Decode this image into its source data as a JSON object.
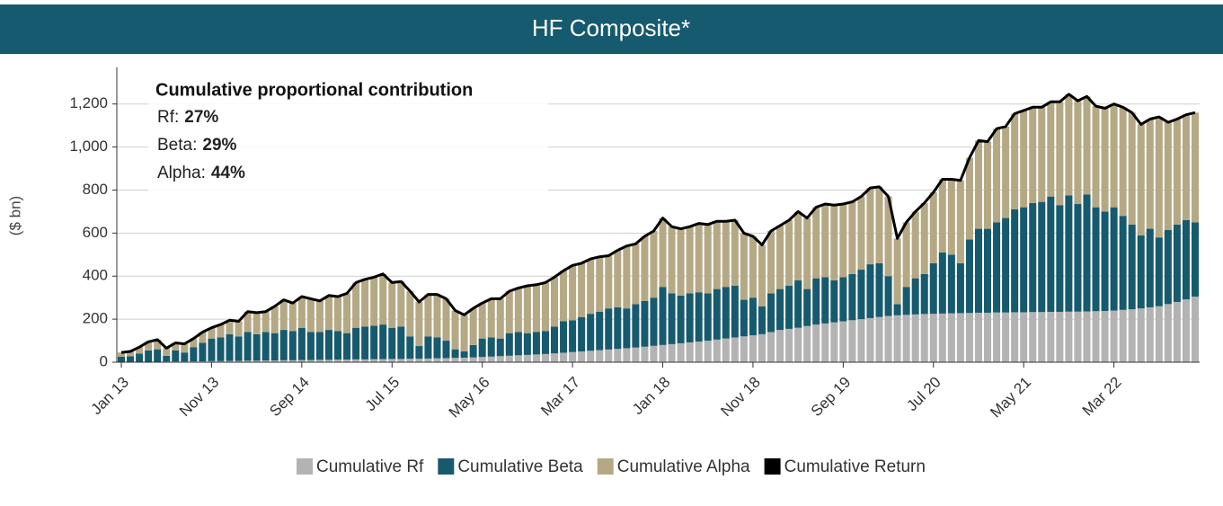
{
  "chart_data": {
    "type": "stacked-bar",
    "title": "HF Composite*",
    "y_label": "($ bn)",
    "annotation": {
      "title": "Cumulative proportional contribution",
      "items": [
        {
          "label": "Rf:",
          "value": "27%"
        },
        {
          "label": "Beta:",
          "value": "29%"
        },
        {
          "label": "Alpha:",
          "value": "44%"
        }
      ]
    },
    "categories": [
      "Jan 13",
      null,
      null,
      null,
      null,
      null,
      null,
      null,
      null,
      null,
      "Nov 13",
      null,
      null,
      null,
      null,
      null,
      null,
      null,
      null,
      null,
      "Sep 14",
      null,
      null,
      null,
      null,
      null,
      null,
      null,
      null,
      null,
      "Jul 15",
      null,
      null,
      null,
      null,
      null,
      null,
      null,
      null,
      null,
      "May 16",
      null,
      null,
      null,
      null,
      null,
      null,
      null,
      null,
      null,
      "Mar 17",
      null,
      null,
      null,
      null,
      null,
      null,
      null,
      null,
      null,
      "Jan 18",
      null,
      null,
      null,
      null,
      null,
      null,
      null,
      null,
      null,
      "Nov 18",
      null,
      null,
      null,
      null,
      null,
      null,
      null,
      null,
      null,
      "Sep 19",
      null,
      null,
      null,
      null,
      null,
      null,
      null,
      null,
      null,
      "Jul 20",
      null,
      null,
      null,
      null,
      null,
      null,
      null,
      null,
      null,
      "May 21",
      null,
      null,
      null,
      null,
      null,
      null,
      null,
      null,
      null,
      "Mar 22",
      null,
      null,
      null,
      null,
      null,
      null,
      null,
      null,
      null
    ],
    "ylim": [
      0,
      1370
    ],
    "yticks": [
      0,
      200,
      400,
      600,
      800,
      {
        "value": 1000,
        "label": "1,000"
      },
      {
        "value": 1200,
        "label": "1,200"
      }
    ],
    "grid": true,
    "series": [
      {
        "name": "Cumulative Rf",
        "color": "#b3b3b3",
        "values": [
          1,
          1,
          2,
          2,
          2,
          3,
          3,
          3,
          4,
          4,
          5,
          5,
          6,
          6,
          7,
          7,
          8,
          8,
          9,
          9,
          10,
          10,
          11,
          11,
          12,
          12,
          13,
          13,
          14,
          14,
          15,
          15,
          16,
          16,
          17,
          18,
          19,
          20,
          21,
          22,
          24,
          26,
          28,
          30,
          32,
          34,
          36,
          38,
          41,
          44,
          47,
          50,
          53,
          56,
          59,
          62,
          65,
          68,
          72,
          76,
          80,
          84,
          88,
          92,
          96,
          100,
          105,
          110,
          115,
          120,
          125,
          130,
          140,
          150,
          155,
          160,
          168,
          175,
          180,
          185,
          190,
          195,
          200,
          205,
          210,
          215,
          218,
          220,
          222,
          224,
          225,
          226,
          227,
          228,
          229,
          230,
          230,
          231,
          231,
          232,
          232,
          233,
          233,
          234,
          234,
          235,
          235,
          236,
          237,
          238,
          240,
          243,
          246,
          250,
          255,
          260,
          270,
          280,
          292,
          305
        ]
      },
      {
        "name": "Cumulative Beta",
        "color": "#175a6e",
        "values": [
          24,
          27,
          38,
          53,
          58,
          27,
          52,
          42,
          66,
          86,
          105,
          110,
          124,
          114,
          133,
          123,
          132,
          127,
          141,
          136,
          150,
          130,
          129,
          139,
          133,
          123,
          147,
          152,
          156,
          161,
          145,
          150,
          104,
          59,
          103,
          97,
          81,
          40,
          29,
          58,
          86,
          89,
          82,
          105,
          108,
          101,
          104,
          107,
          124,
          146,
          148,
          160,
          172,
          179,
          191,
          193,
          185,
          202,
          213,
          224,
          270,
          236,
          222,
          228,
          229,
          220,
          235,
          240,
          240,
          170,
          175,
          130,
          180,
          190,
          200,
          220,
          172,
          215,
          215,
          195,
          205,
          215,
          230,
          250,
          250,
          185,
          52,
          130,
          168,
          186,
          235,
          284,
          273,
          232,
          341,
          390,
          390,
          419,
          439,
          478,
          488,
          507,
          512,
          536,
          496,
          540,
          500,
          544,
          483,
          462,
          480,
          437,
          394,
          340,
          365,
          320,
          345,
          360,
          368,
          345
        ]
      },
      {
        "name": "Cumulative Alpha",
        "color": "#b5a985",
        "values": [
          20,
          22,
          30,
          40,
          45,
          35,
          35,
          40,
          40,
          50,
          50,
          60,
          65,
          70,
          95,
          100,
          95,
          125,
          140,
          130,
          145,
          155,
          145,
          160,
          160,
          185,
          210,
          220,
          225,
          235,
          210,
          210,
          210,
          205,
          195,
          200,
          195,
          180,
          170,
          170,
          165,
          180,
          185,
          195,
          205,
          220,
          220,
          225,
          230,
          235,
          255,
          250,
          255,
          255,
          245,
          265,
          290,
          280,
          300,
          310,
          320,
          310,
          310,
          310,
          320,
          320,
          315,
          305,
          305,
          310,
          285,
          285,
          290,
          295,
          305,
          320,
          330,
          330,
          340,
          350,
          340,
          335,
          340,
          355,
          355,
          370,
          305,
          300,
          310,
          330,
          330,
          340,
          350,
          385,
          380,
          410,
          405,
          435,
          425,
          445,
          450,
          445,
          440,
          440,
          480,
          470,
          480,
          455,
          470,
          480,
          480,
          505,
          520,
          515,
          510,
          560,
          500,
          490,
          490,
          510
        ]
      },
      {
        "name": "Cumulative Return",
        "color": "#000000",
        "type": "line",
        "values": [
          45,
          50,
          70,
          95,
          105,
          65,
          90,
          85,
          110,
          140,
          160,
          175,
          195,
          190,
          235,
          230,
          235,
          260,
          290,
          275,
          305,
          295,
          285,
          310,
          305,
          320,
          370,
          385,
          395,
          410,
          370,
          375,
          330,
          280,
          315,
          315,
          295,
          240,
          220,
          250,
          275,
          295,
          295,
          330,
          345,
          355,
          360,
          370,
          395,
          425,
          450,
          460,
          480,
          490,
          495,
          520,
          540,
          550,
          585,
          610,
          670,
          630,
          620,
          630,
          645,
          640,
          655,
          655,
          660,
          600,
          585,
          545,
          610,
          635,
          660,
          700,
          670,
          720,
          735,
          730,
          735,
          745,
          770,
          810,
          815,
          770,
          575,
          650,
          700,
          740,
          790,
          850,
          850,
          845,
          950,
          1030,
          1025,
          1085,
          1095,
          1155,
          1170,
          1185,
          1185,
          1210,
          1210,
          1245,
          1215,
          1235,
          1190,
          1180,
          1200,
          1185,
          1160,
          1105,
          1130,
          1140,
          1115,
          1130,
          1150,
          1160
        ]
      }
    ]
  }
}
